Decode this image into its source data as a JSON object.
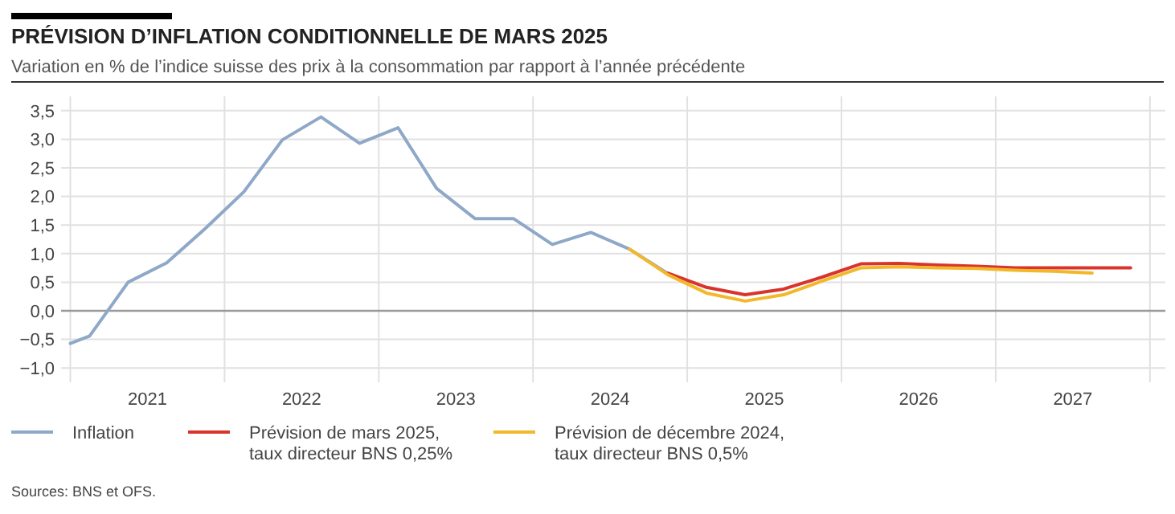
{
  "chart_data": {
    "type": "line",
    "title": "PRÉVISION D’INFLATION CONDITIONNELLE DE MARS 2025",
    "subtitle": "Variation en % de l’indice suisse des prix à la consommation par rapport à l’année précédente",
    "annotations": [
      "Sources: BNS et OFS."
    ],
    "xlim": [
      2020.94,
      2028.1
    ],
    "xticks": [
      {
        "value": 2021,
        "label": null
      },
      {
        "value": 2021.5,
        "label": "2021"
      },
      {
        "value": 2022,
        "label": null
      },
      {
        "value": 2022.5,
        "label": "2022"
      },
      {
        "value": 2023,
        "label": null
      },
      {
        "value": 2023.5,
        "label": "2023"
      },
      {
        "value": 2024,
        "label": null
      },
      {
        "value": 2024.5,
        "label": "2024"
      },
      {
        "value": 2025,
        "label": null
      },
      {
        "value": 2025.5,
        "label": "2025"
      },
      {
        "value": 2026,
        "label": null
      },
      {
        "value": 2026.5,
        "label": "2026"
      },
      {
        "value": 2027,
        "label": null
      },
      {
        "value": 2027.5,
        "label": "2027"
      },
      {
        "value": 2028,
        "label": null
      }
    ],
    "ylim": [
      -1.25,
      3.75
    ],
    "yticks": [
      {
        "value": -1,
        "label": "−1,0"
      },
      {
        "value": -0.5,
        "label": "−0,5"
      },
      {
        "value": 0,
        "label": "0,0"
      },
      {
        "value": 0.5,
        "label": "0,5"
      },
      {
        "value": 1,
        "label": "1,0"
      },
      {
        "value": 1.5,
        "label": "1,5"
      },
      {
        "value": 2,
        "label": "2,0"
      },
      {
        "value": 2.5,
        "label": "2,5"
      },
      {
        "value": 3,
        "label": "3,0"
      },
      {
        "value": 3.5,
        "label": "3,5"
      }
    ],
    "grid": true,
    "legend": "bottom left",
    "marker": "none",
    "line_style": "solid",
    "ref_lines": [
      {
        "axis": "y",
        "value": 0,
        "color": "#9a9a9a"
      }
    ],
    "series": [
      {
        "name": "Inflation",
        "color": "#8fa8c8",
        "x": [
          2021,
          2021.125,
          2021.375,
          2021.625,
          2021.875,
          2022.125,
          2022.375,
          2022.625,
          2022.875,
          2023.125,
          2023.375,
          2023.625,
          2023.875,
          2024.125,
          2024.375,
          2024.625,
          2024.875
        ],
        "values": [
          -0.57,
          -0.44,
          0.5,
          0.84,
          1.44,
          2.08,
          2.99,
          3.39,
          2.93,
          3.2,
          2.14,
          1.61,
          1.61,
          1.16,
          1.37,
          1.08,
          0.65
        ]
      },
      {
        "name": "Prévision de mars 2025,\ntaux directeur BNS 0,25%",
        "color": "#d9342b",
        "x": [
          2024.875,
          2025.125,
          2025.375,
          2025.625,
          2025.875,
          2026.125,
          2026.375,
          2026.625,
          2026.875,
          2027.125,
          2027.375,
          2027.625,
          2027.875
        ],
        "values": [
          0.66,
          0.41,
          0.28,
          0.38,
          0.59,
          0.82,
          0.83,
          0.8,
          0.78,
          0.75,
          0.75,
          0.75,
          0.75
        ]
      },
      {
        "name": "Prévision de décembre 2024,\ntaux directeur BNS 0,5%",
        "color": "#f2b82a",
        "x": [
          2024.625,
          2024.875,
          2025.125,
          2025.375,
          2025.625,
          2025.875,
          2026.125,
          2026.375,
          2026.625,
          2026.875,
          2027.125,
          2027.375,
          2027.625
        ],
        "values": [
          1.08,
          0.63,
          0.31,
          0.17,
          0.28,
          0.52,
          0.75,
          0.77,
          0.75,
          0.74,
          0.71,
          0.69,
          0.66
        ]
      }
    ]
  }
}
